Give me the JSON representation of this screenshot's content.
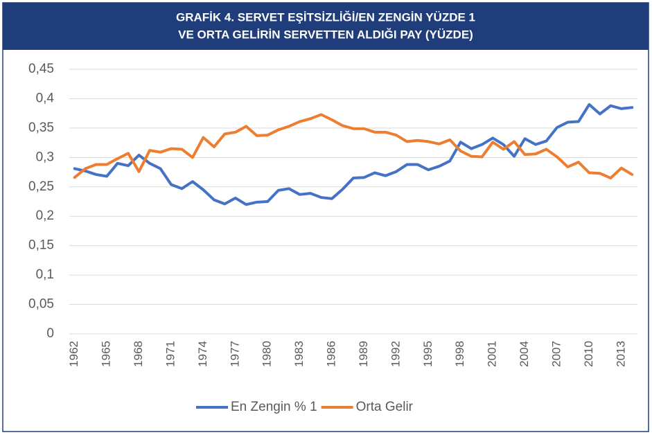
{
  "chart_data": {
    "type": "line",
    "title": [
      "GRAFİK 4. SERVET EŞİTSİZLİĞİ/EN ZENGİN YÜZDE 1",
      "VE ORTA GELİRİN SERVETTEN ALDIĞI PAY (YÜZDE)"
    ],
    "categories": [
      "1962",
      null,
      null,
      "1965",
      null,
      null,
      "1968",
      null,
      null,
      "1971",
      null,
      null,
      "1974",
      null,
      null,
      "1977",
      null,
      null,
      "1980",
      null,
      null,
      "1983",
      null,
      null,
      "1986",
      null,
      null,
      "1989",
      null,
      null,
      "1992",
      null,
      null,
      "1995",
      null,
      null,
      "1998",
      null,
      null,
      "2001",
      null,
      null,
      "2004",
      null,
      null,
      "2007",
      null,
      null,
      "2010",
      null,
      null,
      "2013",
      null
    ],
    "series": [
      {
        "name": "En Zengin % 1",
        "color": "#4472c4",
        "values": [
          0.281,
          0.277,
          0.271,
          0.268,
          0.29,
          0.286,
          0.304,
          0.29,
          0.281,
          0.254,
          0.247,
          0.259,
          0.245,
          0.228,
          0.221,
          0.231,
          0.22,
          0.224,
          0.225,
          0.244,
          0.247,
          0.237,
          0.239,
          0.232,
          0.23,
          0.246,
          0.265,
          0.266,
          0.274,
          0.269,
          0.276,
          0.288,
          0.288,
          0.279,
          0.285,
          0.294,
          0.326,
          0.315,
          0.322,
          0.333,
          0.322,
          0.302,
          0.332,
          0.322,
          0.328,
          0.351,
          0.36,
          0.361,
          0.39,
          0.374,
          0.388,
          0.383,
          0.385
        ]
      },
      {
        "name": "Orta Gelir",
        "color": "#ed7d31",
        "values": [
          0.266,
          0.281,
          0.288,
          0.288,
          0.298,
          0.307,
          0.276,
          0.312,
          0.309,
          0.315,
          0.314,
          0.3,
          0.334,
          0.318,
          0.34,
          0.343,
          0.353,
          0.337,
          0.338,
          0.347,
          0.353,
          0.361,
          0.366,
          0.373,
          0.364,
          0.354,
          0.349,
          0.349,
          0.343,
          0.343,
          0.338,
          0.327,
          0.329,
          0.327,
          0.323,
          0.33,
          0.311,
          0.302,
          0.301,
          0.326,
          0.314,
          0.327,
          0.305,
          0.306,
          0.314,
          0.301,
          0.284,
          0.292,
          0.274,
          0.273,
          0.265,
          0.282,
          0.271
        ]
      }
    ],
    "ylim": [
      0,
      0.45
    ],
    "yticks": [
      0,
      {
        "value": 0.05,
        "label": "0,05"
      },
      {
        "value": 0.1,
        "label": "0,1"
      },
      {
        "value": 0.15,
        "label": "0,15"
      },
      {
        "value": 0.2,
        "label": "0,2"
      },
      {
        "value": 0.25,
        "label": "0,25"
      },
      {
        "value": 0.3,
        "label": "0,3"
      },
      {
        "value": 0.35,
        "label": "0,35"
      },
      {
        "value": 0.4,
        "label": "0,4"
      },
      {
        "value": 0.45,
        "label": "0,45"
      }
    ],
    "grid": true,
    "legend": "bottom"
  }
}
